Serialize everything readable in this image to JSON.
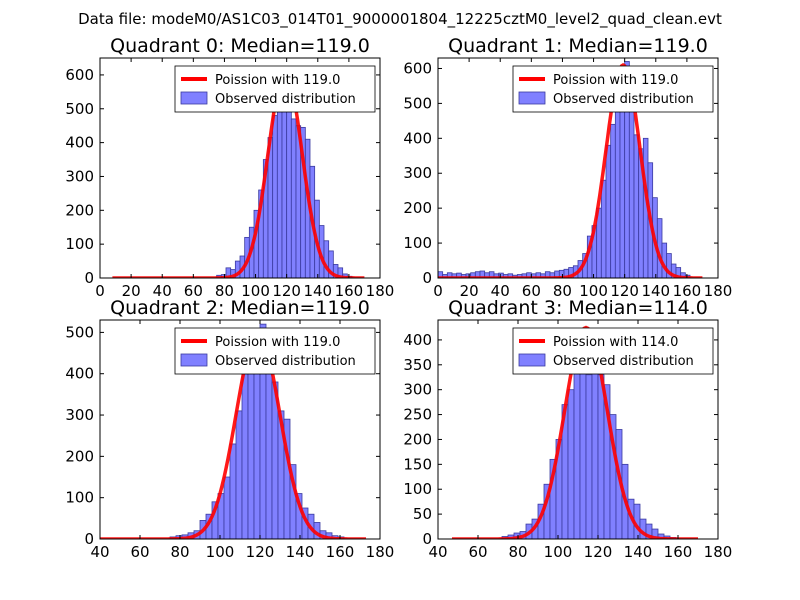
{
  "figure_title": "Data file: modeM0/AS1C03_014T01_9000001804_12225cztM0_level2_quad_clean.evt",
  "colors": {
    "bar_fill": "#8080ff",
    "bar_edge": "#3a3aa0",
    "curve": "#ff0000"
  },
  "chart_data": [
    {
      "type": "bar",
      "title": "Quadrant 0: Median=119.0",
      "xlim": [
        0,
        180
      ],
      "ylim": [
        0,
        650
      ],
      "xticks": [
        0,
        20,
        40,
        60,
        80,
        100,
        120,
        140,
        160,
        180
      ],
      "yticks": [
        0,
        100,
        200,
        300,
        400,
        500,
        600
      ],
      "legend": [
        "Poission with 119.0",
        "Observed distribution"
      ],
      "legend_position": "upper-right",
      "poisson_mean": 119.0,
      "poisson_peak": 610,
      "poisson_x_range": [
        8,
        170
      ],
      "bin_width": 3,
      "bins_start": [
        75,
        78,
        81,
        84,
        87,
        90,
        93,
        96,
        99,
        102,
        105,
        108,
        111,
        114,
        117,
        120,
        123,
        126,
        129,
        132,
        135,
        138,
        141,
        144,
        147,
        150,
        153,
        156,
        159
      ],
      "values": [
        8,
        10,
        30,
        25,
        50,
        65,
        120,
        150,
        200,
        260,
        350,
        415,
        480,
        520,
        620,
        560,
        470,
        450,
        445,
        410,
        330,
        230,
        155,
        110,
        80,
        40,
        30,
        12,
        5
      ]
    },
    {
      "type": "bar",
      "title": "Quadrant 1: Median=119.0",
      "xlim": [
        0,
        180
      ],
      "ylim": [
        0,
        630
      ],
      "xticks": [
        0,
        20,
        40,
        60,
        80,
        100,
        120,
        140,
        160,
        180
      ],
      "yticks": [
        0,
        100,
        200,
        300,
        400,
        500,
        600
      ],
      "legend": [
        "Poission with 119.0",
        "Observed distribution"
      ],
      "legend_position": "upper-right",
      "poisson_mean": 119.0,
      "poisson_peak": 610,
      "poisson_x_range": [
        0,
        170
      ],
      "bin_width": 3,
      "bins_start": [
        0,
        3,
        6,
        9,
        12,
        15,
        18,
        21,
        24,
        27,
        30,
        33,
        36,
        39,
        42,
        45,
        48,
        51,
        54,
        57,
        60,
        63,
        66,
        69,
        72,
        75,
        78,
        81,
        84,
        87,
        90,
        93,
        96,
        99,
        102,
        105,
        108,
        111,
        114,
        117,
        120,
        123,
        126,
        129,
        132,
        135,
        138,
        141,
        144,
        147,
        150,
        153,
        156,
        159
      ],
      "values": [
        18,
        10,
        15,
        12,
        14,
        10,
        12,
        15,
        18,
        20,
        15,
        18,
        12,
        14,
        10,
        12,
        8,
        10,
        12,
        15,
        12,
        15,
        12,
        18,
        15,
        20,
        22,
        25,
        30,
        35,
        50,
        70,
        120,
        150,
        200,
        280,
        380,
        440,
        490,
        510,
        620,
        520,
        410,
        370,
        400,
        330,
        230,
        170,
        100,
        70,
        40,
        30,
        15,
        8
      ]
    },
    {
      "type": "bar",
      "title": "Quadrant 2: Median=119.0",
      "xlim": [
        40,
        180
      ],
      "ylim": [
        0,
        530
      ],
      "xticks": [
        40,
        60,
        80,
        100,
        120,
        140,
        160,
        180
      ],
      "yticks": [
        0,
        100,
        200,
        300,
        400,
        500
      ],
      "legend": [
        "Poission with 119.0",
        "Observed distribution"
      ],
      "legend_position": "upper-right",
      "poisson_mean": 119.0,
      "poisson_peak": 500,
      "poisson_x_range": [
        40,
        173
      ],
      "bin_width": 3,
      "bins_start": [
        75,
        78,
        81,
        84,
        87,
        90,
        93,
        96,
        99,
        102,
        105,
        108,
        111,
        114,
        117,
        120,
        123,
        126,
        129,
        132,
        135,
        138,
        141,
        144,
        147,
        150,
        153,
        156,
        159
      ],
      "values": [
        5,
        8,
        10,
        15,
        20,
        45,
        60,
        90,
        110,
        150,
        230,
        310,
        400,
        460,
        430,
        520,
        400,
        380,
        310,
        290,
        180,
        110,
        75,
        60,
        40,
        20,
        15,
        8,
        5
      ]
    },
    {
      "type": "bar",
      "title": "Quadrant 3: Median=114.0",
      "xlim": [
        40,
        180
      ],
      "ylim": [
        0,
        440
      ],
      "xticks": [
        40,
        60,
        80,
        100,
        120,
        140,
        160,
        180
      ],
      "yticks": [
        0,
        50,
        100,
        150,
        200,
        250,
        300,
        350,
        400
      ],
      "legend": [
        "Poission with 114.0",
        "Observed distribution"
      ],
      "legend_position": "upper-right",
      "poisson_mean": 114.0,
      "poisson_peak": 425,
      "poisson_x_range": [
        47,
        170
      ],
      "bin_width": 3,
      "bins_start": [
        72,
        75,
        78,
        81,
        84,
        87,
        90,
        93,
        96,
        99,
        102,
        105,
        108,
        111,
        114,
        117,
        120,
        123,
        126,
        129,
        132,
        135,
        138,
        141,
        144,
        147,
        150,
        153,
        156
      ],
      "values": [
        5,
        8,
        12,
        15,
        30,
        40,
        70,
        110,
        160,
        200,
        270,
        300,
        380,
        400,
        330,
        420,
        330,
        310,
        250,
        220,
        150,
        80,
        70,
        40,
        30,
        20,
        10,
        6,
        3
      ]
    }
  ]
}
